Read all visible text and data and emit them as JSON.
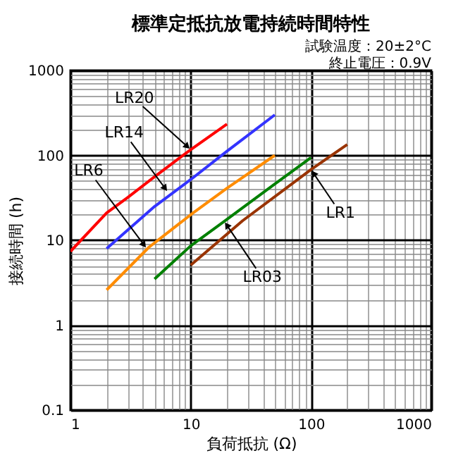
{
  "chart_data": {
    "type": "line",
    "title": "標準定抵抗放電持続時間特性",
    "subtitle": "試験温度：20±2°C\n終止電圧：0.9V",
    "xlabel": "負荷抵抗 (Ω)",
    "ylabel": "接続時間 (h)",
    "log": "xy",
    "grid": true,
    "marker": "none",
    "line_style": "solid",
    "legend": false,
    "xlim": [
      1,
      1000
    ],
    "xticks": [
      1,
      10,
      100,
      1000
    ],
    "ylim": [
      0.1,
      1000
    ],
    "yticks": [
      0.1,
      1,
      10,
      100,
      1000
    ],
    "series": [
      {
        "color": "#ff0000",
        "x": [
          1,
          2,
          3,
          5,
          10,
          20
        ],
        "values": [
          7.4,
          21,
          32,
          56,
          117,
          233
        ]
      },
      {
        "color": "#3333ff",
        "x": [
          2,
          5,
          10,
          20,
          50
        ],
        "values": [
          8,
          25,
          52,
          112,
          300
        ]
      },
      {
        "color": "#ff8c00",
        "x": [
          2,
          4.5,
          10,
          20,
          50
        ],
        "values": [
          2.6,
          8.3,
          20,
          41,
          100
        ]
      },
      {
        "color": "#008000",
        "x": [
          5,
          10,
          19,
          50,
          100
        ],
        "values": [
          3.5,
          8.6,
          16.7,
          46,
          94
        ]
      },
      {
        "color": "#993300",
        "x": [
          10,
          27,
          100,
          200
        ],
        "values": [
          5.1,
          17,
          68,
          134
        ]
      }
    ],
    "annotations": [
      {
        "text": "LR20",
        "x": 10,
        "y": 117
      },
      {
        "text": "LR14",
        "x": 6.45,
        "y": 37
      },
      {
        "text": "LR6",
        "x": 4.3,
        "y": 8
      },
      {
        "text": "LR03",
        "x": 19,
        "y": 16.7
      },
      {
        "text": "LR1",
        "x": 100,
        "y": 68
      }
    ]
  }
}
